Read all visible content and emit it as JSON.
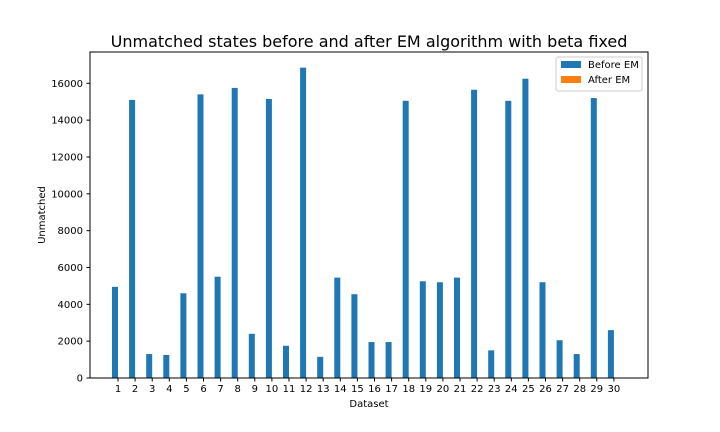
{
  "chart_data": {
    "type": "bar",
    "title": "Unmatched states before and after EM algorithm with beta fixed",
    "xlabel": "Dataset",
    "ylabel": "Unmatched",
    "categories": [
      "1",
      "2",
      "3",
      "4",
      "5",
      "6",
      "7",
      "8",
      "9",
      "10",
      "11",
      "12",
      "13",
      "14",
      "15",
      "16",
      "17",
      "18",
      "19",
      "20",
      "21",
      "22",
      "23",
      "24",
      "25",
      "26",
      "27",
      "28",
      "29",
      "30"
    ],
    "ylim": [
      0,
      17700
    ],
    "yticks": [
      0,
      2000,
      4000,
      6000,
      8000,
      10000,
      12000,
      14000,
      16000
    ],
    "series": [
      {
        "name": "Before EM",
        "color": "#1f77b4",
        "values": [
          4950,
          15100,
          1300,
          1250,
          4600,
          15400,
          5500,
          15750,
          2400,
          15150,
          1750,
          16850,
          1150,
          5450,
          4550,
          1950,
          1950,
          15050,
          5250,
          5200,
          5450,
          15650,
          1500,
          15050,
          16250,
          5200,
          2050,
          1300,
          15200,
          2600
        ]
      },
      {
        "name": "After EM",
        "color": "#ff7f0e",
        "values": [
          0,
          0,
          0,
          0,
          0,
          0,
          0,
          0,
          0,
          0,
          0,
          0,
          0,
          0,
          0,
          0,
          0,
          0,
          0,
          0,
          0,
          0,
          0,
          0,
          0,
          0,
          0,
          0,
          0,
          0
        ]
      }
    ],
    "legend": "top-right",
    "grid": false
  }
}
